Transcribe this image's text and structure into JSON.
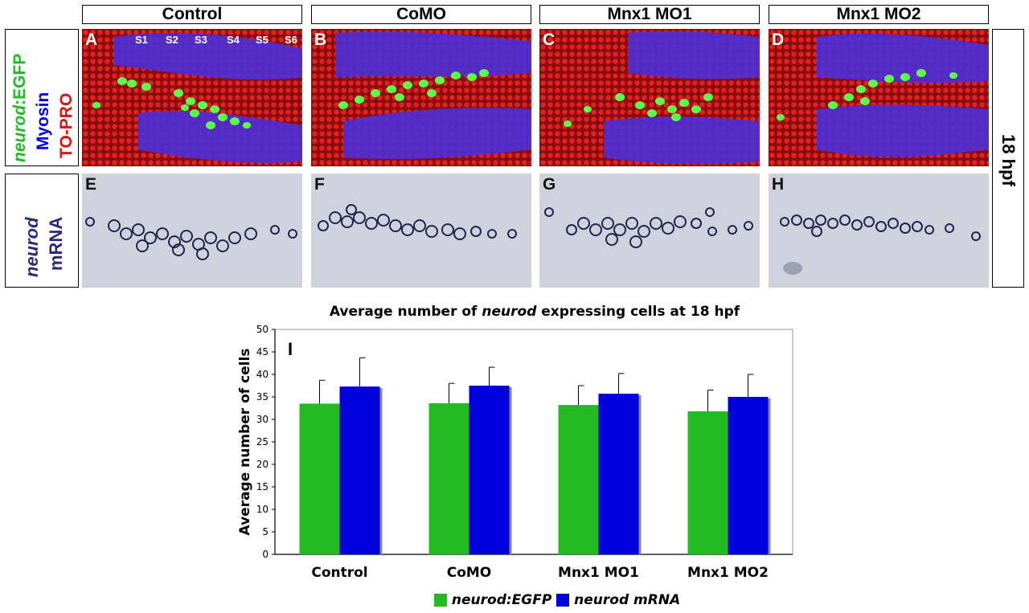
{
  "columns": [
    "Control",
    "CoMO",
    "Mnx1 MO1",
    "Mnx1 MO2"
  ],
  "panels": {
    "top_letters": [
      "A",
      "B",
      "C",
      "D"
    ],
    "bottom_letters": [
      "E",
      "F",
      "G",
      "H"
    ],
    "somites": [
      "S1",
      "S2",
      "S3",
      "S4",
      "S5",
      "S6"
    ]
  },
  "left_labels": {
    "row1_line1_italic": "neurod",
    "row1_line1_rest": ":EGFP",
    "row1_line2": "Myosin",
    "row1_line3": "TO-PRO",
    "row2_line1": "neurod",
    "row2_line2": "mRNA"
  },
  "right_label": "18 hpf",
  "colors": {
    "green": "#22bb22",
    "blue": "#0000dd",
    "red": "#dd1111",
    "label_blue": "#2a2a7a",
    "bar_shadow": "#888888"
  },
  "chart_data": {
    "type": "bar",
    "panel_label": "I",
    "title_pre": "Average number of ",
    "title_italic": "neurod",
    "title_post": " expressing cells at 18 hpf",
    "ylabel": "Average number of cells",
    "xlabel": "",
    "ylim": [
      0,
      50
    ],
    "yticks": [
      0,
      5,
      10,
      15,
      20,
      25,
      30,
      35,
      40,
      45,
      50
    ],
    "categories": [
      "Control",
      "CoMO",
      "Mnx1 MO1",
      "Mnx1 MO2"
    ],
    "series": [
      {
        "name": "neurod:EGFP",
        "color": "#22bb22",
        "values": [
          33.5,
          33.6,
          33.2,
          31.8
        ],
        "errors": [
          5.2,
          4.4,
          4.3,
          4.7
        ]
      },
      {
        "name": "neurod mRNA",
        "color": "#0000dd",
        "values": [
          37.3,
          37.5,
          35.7,
          35.0
        ],
        "errors": [
          6.4,
          4.1,
          4.5,
          5.0
        ]
      }
    ],
    "legend_position": "bottom"
  }
}
